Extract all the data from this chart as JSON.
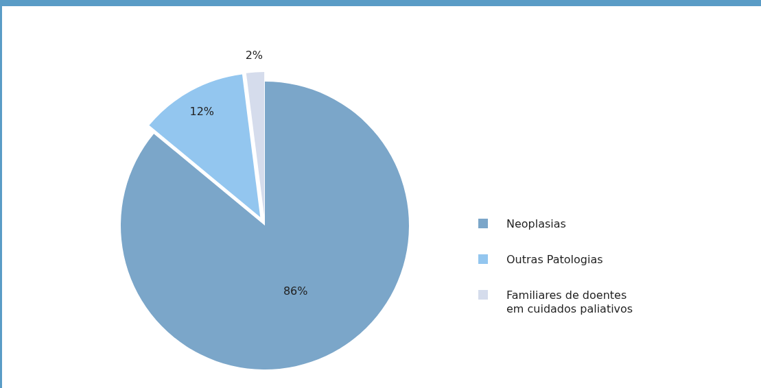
{
  "chart_data": {
    "type": "pie",
    "categories": [
      "Neoplasias",
      "Outras Patologias",
      "Familiares de doentes em cuidados paliativos"
    ],
    "values": [
      86,
      12,
      2
    ],
    "value_labels": [
      "86%",
      "12%",
      "2%"
    ],
    "colors": [
      "#7ba6c9",
      "#93c6ef",
      "#d5dcec"
    ],
    "legend": "right"
  }
}
